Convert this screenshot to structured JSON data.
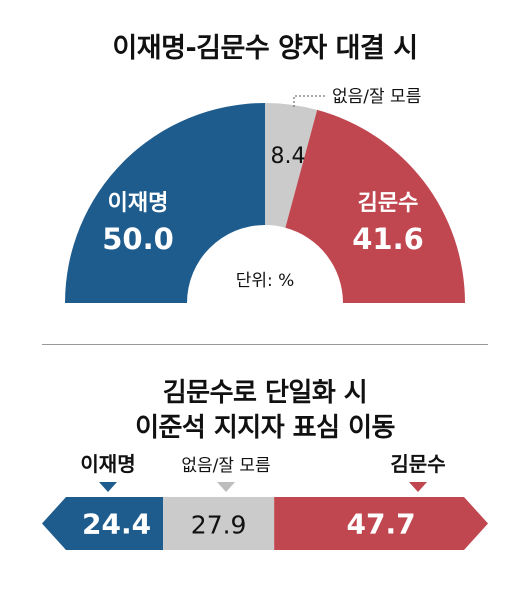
{
  "colors": {
    "lee": "#1F5C8E",
    "kim": "#C0474F",
    "none": "#CBCBCB",
    "text": "#111111"
  },
  "chart_data": [
    {
      "type": "pie",
      "style": "half-donut",
      "title": "이재명-김문수 양자 대결 시",
      "unit_note": "단위: %",
      "slices": [
        {
          "label": "이재명",
          "value": 50.0,
          "display": "50.0",
          "color": "#1F5C8E"
        },
        {
          "label": "없음/잘 모름",
          "value": 8.4,
          "display": "8.4",
          "color": "#CBCBCB"
        },
        {
          "label": "김문수",
          "value": 41.6,
          "display": "41.6",
          "color": "#C0474F"
        }
      ]
    },
    {
      "type": "bar",
      "style": "stacked-horizontal-arrow",
      "title_lines": [
        "김문수로 단일화 시",
        "이준석 지지자 표심 이동"
      ],
      "segments": [
        {
          "label": "이재명",
          "value": 24.4,
          "display": "24.4",
          "color": "#1F5C8E"
        },
        {
          "label": "없음/잘 모름",
          "value": 27.9,
          "display": "27.9",
          "color": "#CBCBCB"
        },
        {
          "label": "김문수",
          "value": 47.7,
          "display": "47.7",
          "color": "#C0474F"
        }
      ]
    }
  ]
}
